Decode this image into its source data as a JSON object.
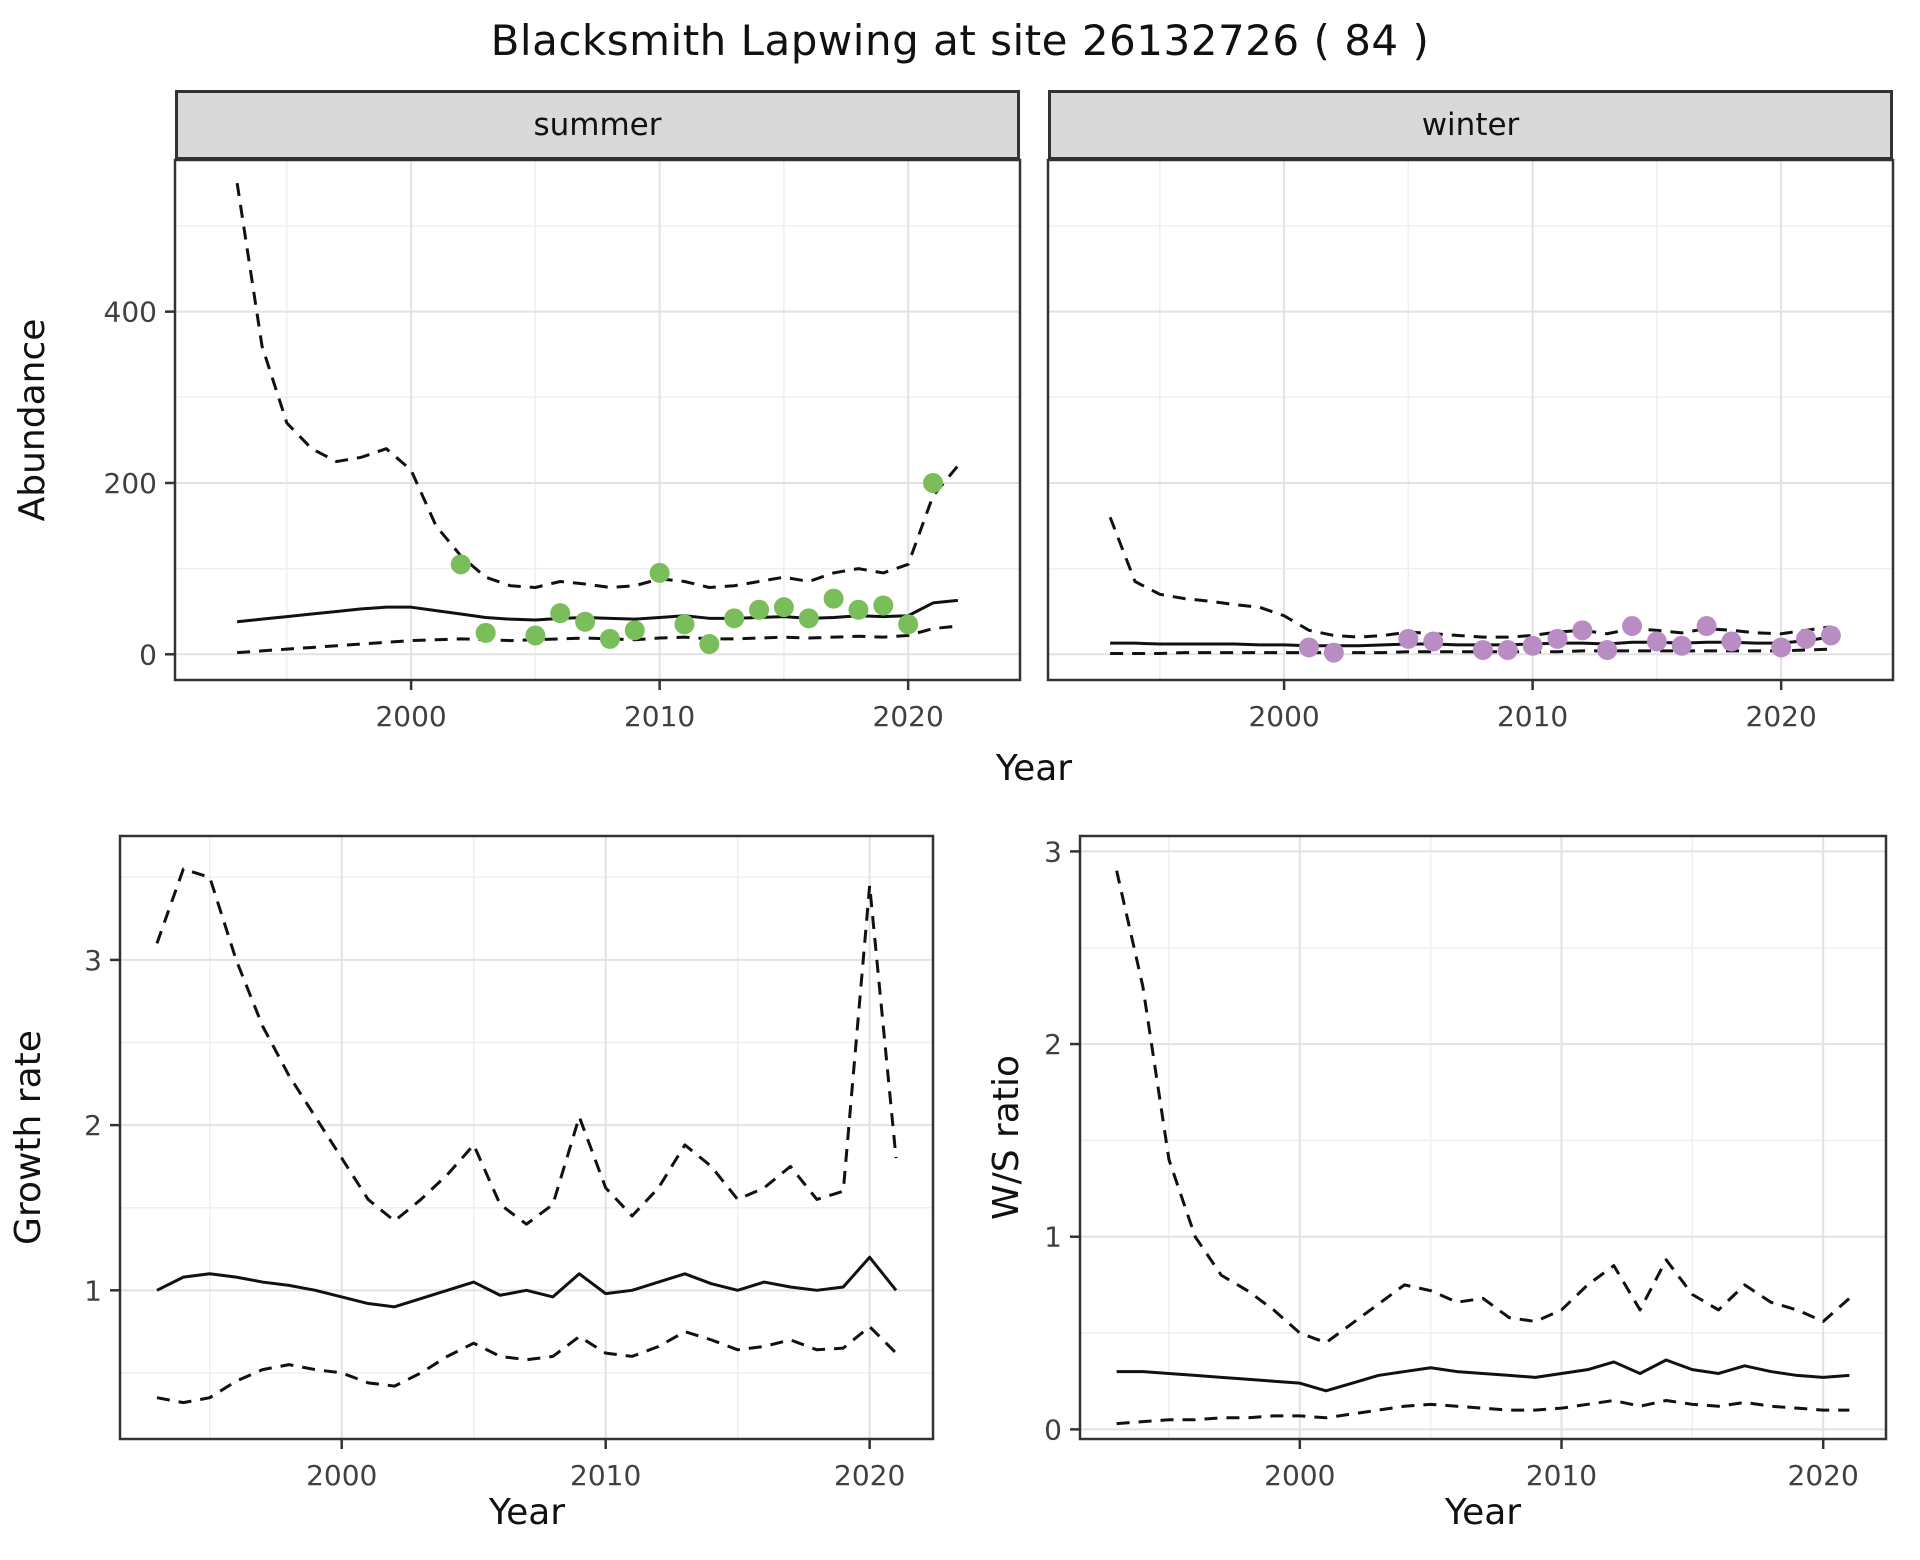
{
  "title": "Blacksmith Lapwing at site 26132726 ( 84 )",
  "theme": {
    "grid_major": "#E2E2E2",
    "grid_minor": "#EFEFEF",
    "panel_border": "#333333",
    "tick_color": "#333333",
    "line": "#111111",
    "strip_bg": "#D9D9D9",
    "summer_point_color": "#7ABD5B",
    "winter_point_color": "#B98CC4"
  },
  "chart_data": [
    {
      "type": "line",
      "facet_label": "summer",
      "xlabel": "Year",
      "ylabel": "Abundance",
      "xlim": [
        1990.5,
        2024.5
      ],
      "ylim": [
        -30,
        577
      ],
      "xticks": [
        2000,
        2010,
        2020
      ],
      "yticks": [
        0,
        200,
        400
      ],
      "years": [
        1993,
        1994,
        1995,
        1996,
        1997,
        1998,
        1999,
        2000,
        2001,
        2002,
        2003,
        2004,
        2005,
        2006,
        2007,
        2008,
        2009,
        2010,
        2011,
        2012,
        2013,
        2014,
        2015,
        2016,
        2017,
        2018,
        2019,
        2020,
        2021,
        2022
      ],
      "series": [
        {
          "name": "fit",
          "style": "solid",
          "values": [
            38,
            41,
            44,
            47,
            50,
            53,
            55,
            55,
            51,
            47,
            43,
            41,
            40,
            42,
            43,
            42,
            41,
            43,
            45,
            42,
            42,
            43,
            44,
            42,
            43,
            45,
            44,
            45,
            60,
            63
          ]
        },
        {
          "name": "upper_ci",
          "style": "dashed",
          "values": [
            550,
            360,
            270,
            240,
            225,
            230,
            240,
            215,
            150,
            115,
            90,
            80,
            78,
            85,
            82,
            78,
            80,
            88,
            85,
            78,
            80,
            85,
            90,
            85,
            95,
            100,
            95,
            105,
            185,
            220
          ]
        },
        {
          "name": "lower_ci",
          "style": "dashed",
          "values": [
            2,
            4,
            6,
            8,
            10,
            12,
            14,
            16,
            17,
            18,
            17,
            16,
            17,
            18,
            19,
            18,
            17,
            19,
            20,
            18,
            18,
            19,
            20,
            19,
            20,
            21,
            20,
            22,
            30,
            33
          ]
        }
      ],
      "points": {
        "years": [
          2002,
          2003,
          2005,
          2006,
          2007,
          2008,
          2009,
          2010,
          2011,
          2012,
          2013,
          2014,
          2015,
          2016,
          2017,
          2018,
          2019,
          2020,
          2021
        ],
        "values": [
          105,
          25,
          22,
          48,
          38,
          18,
          28,
          95,
          35,
          12,
          42,
          52,
          55,
          42,
          65,
          52,
          57,
          35,
          200
        ],
        "color": "#7ABD5B"
      }
    },
    {
      "type": "line",
      "facet_label": "winter",
      "xlabel": "Year",
      "ylabel": "Abundance",
      "xlim": [
        1990.5,
        2024.5
      ],
      "ylim": [
        -30,
        577
      ],
      "xticks": [
        2000,
        2010,
        2020
      ],
      "yticks": [
        0,
        200,
        400
      ],
      "years": [
        1993,
        1994,
        1995,
        1996,
        1997,
        1998,
        1999,
        2000,
        2001,
        2002,
        2003,
        2004,
        2005,
        2006,
        2007,
        2008,
        2009,
        2010,
        2011,
        2012,
        2013,
        2014,
        2015,
        2016,
        2017,
        2018,
        2019,
        2020,
        2021,
        2022
      ],
      "series": [
        {
          "name": "fit",
          "style": "solid",
          "values": [
            13,
            13,
            12,
            12,
            12,
            12,
            11,
            11,
            10,
            10,
            10,
            11,
            12,
            12,
            11,
            11,
            11,
            12,
            13,
            13,
            12,
            14,
            14,
            13,
            14,
            14,
            13,
            13,
            16,
            20
          ]
        },
        {
          "name": "upper_ci",
          "style": "dashed",
          "values": [
            160,
            85,
            70,
            65,
            62,
            58,
            55,
            45,
            28,
            22,
            20,
            22,
            26,
            24,
            22,
            20,
            20,
            22,
            26,
            28,
            24,
            30,
            28,
            25,
            30,
            28,
            25,
            24,
            28,
            32
          ]
        },
        {
          "name": "lower_ci",
          "style": "dashed",
          "values": [
            1,
            1,
            1,
            2,
            2,
            2,
            2,
            2,
            2,
            2,
            2,
            2,
            3,
            3,
            3,
            3,
            3,
            3,
            3,
            4,
            4,
            4,
            4,
            4,
            4,
            4,
            4,
            4,
            5,
            6
          ]
        }
      ],
      "points": {
        "years": [
          2001,
          2002,
          2005,
          2006,
          2008,
          2009,
          2010,
          2011,
          2012,
          2013,
          2014,
          2015,
          2016,
          2017,
          2018,
          2020,
          2021,
          2022
        ],
        "values": [
          8,
          2,
          18,
          15,
          5,
          5,
          10,
          18,
          28,
          5,
          33,
          15,
          10,
          33,
          15,
          8,
          18,
          22
        ],
        "color": "#B98CC4"
      }
    },
    {
      "type": "line",
      "facet_label": "",
      "xlabel": "Year",
      "ylabel": "Growth rate",
      "xlim": [
        1991.6,
        2022.4
      ],
      "ylim": [
        0.1,
        3.75
      ],
      "xticks": [
        2000,
        2010,
        2020
      ],
      "yticks": [
        1,
        2,
        3
      ],
      "years": [
        1993,
        1994,
        1995,
        1996,
        1997,
        1998,
        1999,
        2000,
        2001,
        2002,
        2003,
        2004,
        2005,
        2006,
        2007,
        2008,
        2009,
        2010,
        2011,
        2012,
        2013,
        2014,
        2015,
        2016,
        2017,
        2018,
        2019,
        2020,
        2021
      ],
      "series": [
        {
          "name": "fit",
          "style": "solid",
          "values": [
            1.0,
            1.08,
            1.1,
            1.08,
            1.05,
            1.03,
            1.0,
            0.96,
            0.92,
            0.9,
            0.95,
            1.0,
            1.05,
            0.97,
            1.0,
            0.96,
            1.1,
            0.98,
            1.0,
            1.05,
            1.1,
            1.04,
            1.0,
            1.05,
            1.02,
            1.0,
            1.02,
            1.2,
            1.0
          ]
        },
        {
          "name": "upper_ci",
          "style": "dashed",
          "values": [
            3.1,
            3.55,
            3.5,
            3.0,
            2.6,
            2.3,
            2.05,
            1.8,
            1.55,
            1.42,
            1.55,
            1.7,
            1.88,
            1.52,
            1.4,
            1.52,
            2.05,
            1.62,
            1.45,
            1.62,
            1.88,
            1.75,
            1.55,
            1.62,
            1.75,
            1.55,
            1.6,
            3.45,
            1.8
          ]
        },
        {
          "name": "lower_ci",
          "style": "dashed",
          "values": [
            0.35,
            0.32,
            0.35,
            0.45,
            0.52,
            0.55,
            0.52,
            0.5,
            0.44,
            0.42,
            0.5,
            0.6,
            0.68,
            0.6,
            0.58,
            0.6,
            0.72,
            0.62,
            0.6,
            0.66,
            0.75,
            0.7,
            0.64,
            0.66,
            0.7,
            0.64,
            0.65,
            0.78,
            0.62
          ]
        }
      ]
    },
    {
      "type": "line",
      "facet_label": "",
      "xlabel": "Year",
      "ylabel": "W/S ratio",
      "xlim": [
        1991.6,
        2022.4
      ],
      "ylim": [
        -0.05,
        3.08
      ],
      "xticks": [
        2000,
        2010,
        2020
      ],
      "yticks": [
        0,
        1,
        2,
        3
      ],
      "years": [
        1993,
        1994,
        1995,
        1996,
        1997,
        1998,
        1999,
        2000,
        2001,
        2002,
        2003,
        2004,
        2005,
        2006,
        2007,
        2008,
        2009,
        2010,
        2011,
        2012,
        2013,
        2014,
        2015,
        2016,
        2017,
        2018,
        2019,
        2020,
        2021
      ],
      "series": [
        {
          "name": "fit",
          "style": "solid",
          "values": [
            0.3,
            0.3,
            0.29,
            0.28,
            0.27,
            0.26,
            0.25,
            0.24,
            0.2,
            0.24,
            0.28,
            0.3,
            0.32,
            0.3,
            0.29,
            0.28,
            0.27,
            0.29,
            0.31,
            0.35,
            0.29,
            0.36,
            0.31,
            0.29,
            0.33,
            0.3,
            0.28,
            0.27,
            0.28
          ]
        },
        {
          "name": "upper_ci",
          "style": "dashed",
          "values": [
            2.9,
            2.3,
            1.4,
            1.0,
            0.8,
            0.72,
            0.62,
            0.5,
            0.45,
            0.55,
            0.65,
            0.75,
            0.72,
            0.66,
            0.68,
            0.58,
            0.56,
            0.62,
            0.75,
            0.85,
            0.62,
            0.88,
            0.7,
            0.62,
            0.75,
            0.66,
            0.62,
            0.56,
            0.68
          ]
        },
        {
          "name": "lower_ci",
          "style": "dashed",
          "values": [
            0.03,
            0.04,
            0.05,
            0.05,
            0.06,
            0.06,
            0.07,
            0.07,
            0.06,
            0.08,
            0.1,
            0.12,
            0.13,
            0.12,
            0.11,
            0.1,
            0.1,
            0.11,
            0.13,
            0.15,
            0.12,
            0.15,
            0.13,
            0.12,
            0.14,
            0.12,
            0.11,
            0.1,
            0.1
          ]
        }
      ]
    }
  ]
}
